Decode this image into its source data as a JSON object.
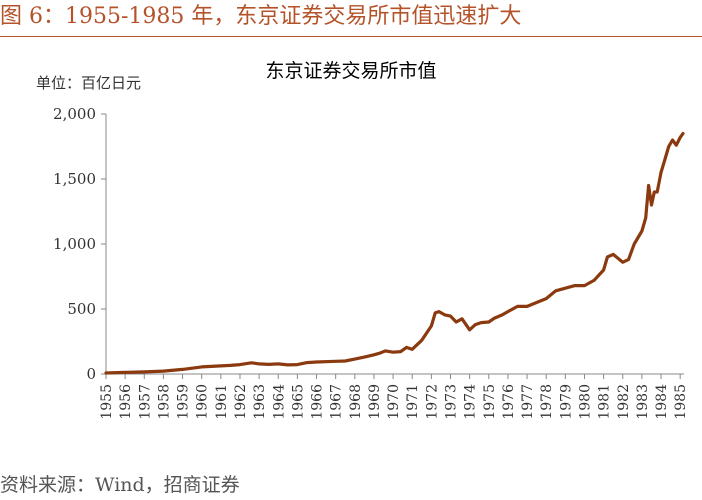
{
  "figure": {
    "title": "图 6：1955-1985 年，东京证券交易所市值迅速扩大",
    "source": "资料来源：Wind，招商证券"
  },
  "chart_data": {
    "type": "line",
    "title": "东京证券交易所市值",
    "unit_label": "单位：百亿日元",
    "ylim": [
      0,
      2000
    ],
    "xlim": [
      1955,
      1985.2
    ],
    "yticks": [
      0,
      500,
      1000,
      1500,
      2000
    ],
    "ytick_labels": [
      "0",
      "500",
      "1,000",
      "1,500",
      "2,000"
    ],
    "xtick_labels": [
      "1955",
      "1956",
      "1957",
      "1958",
      "1959",
      "1960",
      "1961",
      "1962",
      "1963",
      "1964",
      "1965",
      "1966",
      "1967",
      "1968",
      "1969",
      "1970",
      "1971",
      "1972",
      "1973",
      "1974",
      "1975",
      "1976",
      "1977",
      "1978",
      "1979",
      "1980",
      "1981",
      "1982",
      "1983",
      "1984",
      "1985"
    ],
    "series": [
      {
        "color": "#8b3a0f",
        "x": [
          1955.0,
          1956.0,
          1957.0,
          1958.0,
          1959.0,
          1960.0,
          1961.0,
          1961.5,
          1962.0,
          1962.6,
          1963.0,
          1963.5,
          1964.0,
          1964.5,
          1965.0,
          1965.5,
          1966.0,
          1967.0,
          1967.5,
          1968.0,
          1968.5,
          1969.0,
          1969.3,
          1969.6,
          1970.0,
          1970.4,
          1970.7,
          1971.0,
          1971.5,
          1972.0,
          1972.2,
          1972.4,
          1972.7,
          1973.0,
          1973.3,
          1973.6,
          1974.0,
          1974.3,
          1974.6,
          1975.0,
          1975.3,
          1975.7,
          1976.0,
          1976.5,
          1977.0,
          1977.5,
          1978.0,
          1978.5,
          1979.0,
          1979.5,
          1980.0,
          1980.5,
          1981.0,
          1981.2,
          1981.5,
          1982.0,
          1982.3,
          1982.6,
          1983.0,
          1983.2,
          1983.35,
          1983.5,
          1983.65,
          1983.8,
          1984.0,
          1984.2,
          1984.4,
          1984.6,
          1984.8,
          1985.0,
          1985.15
        ],
        "y": [
          8,
          12,
          16,
          22,
          35,
          55,
          62,
          66,
          72,
          86,
          78,
          74,
          78,
          70,
          72,
          88,
          92,
          98,
          100,
          115,
          130,
          148,
          160,
          178,
          168,
          172,
          205,
          190,
          260,
          370,
          470,
          480,
          455,
          445,
          400,
          425,
          340,
          380,
          395,
          400,
          430,
          455,
          480,
          520,
          520,
          550,
          580,
          640,
          660,
          680,
          680,
          720,
          800,
          900,
          920,
          860,
          880,
          1000,
          1100,
          1200,
          1450,
          1300,
          1400,
          1400,
          1550,
          1650,
          1750,
          1800,
          1760,
          1820,
          1850
        ]
      }
    ]
  }
}
